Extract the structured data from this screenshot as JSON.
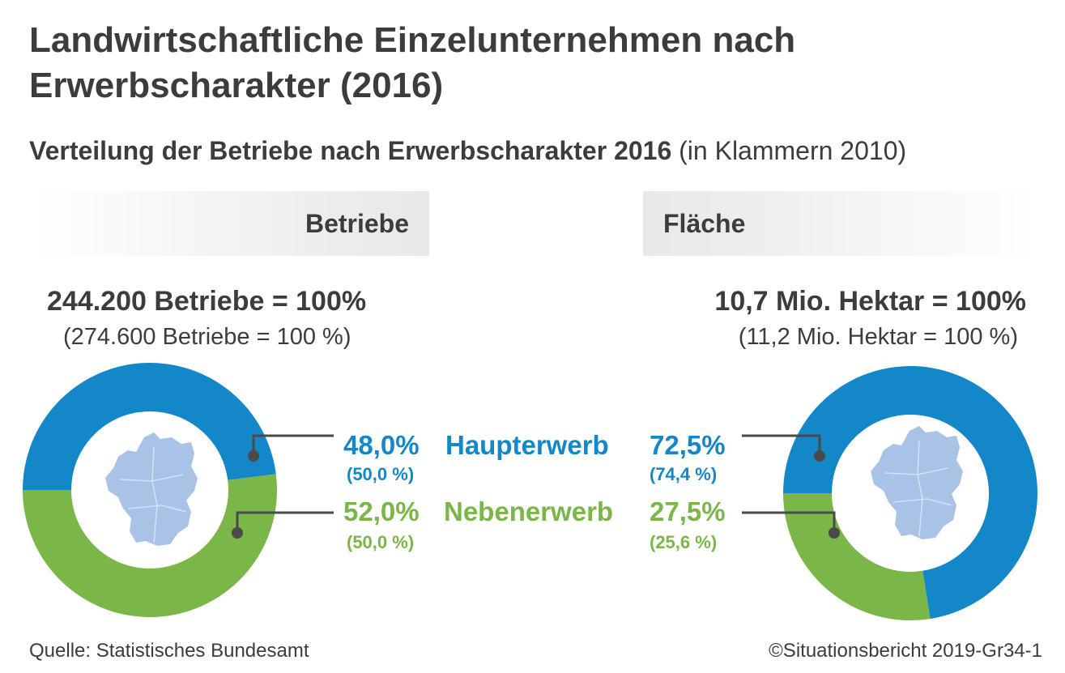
{
  "title": "Landwirtschaftliche Einzelunternehmen nach Erwerbscharakter (2016)",
  "subtitle_bold": "Verteilung der Betriebe nach Erwerbscharakter 2016",
  "subtitle_normal": "(in Klammern 2010)",
  "colors": {
    "haupterwerb": "#1487c8",
    "nebenerwerb": "#7ab648",
    "map": "#a9c3e6"
  },
  "categories": {
    "haupterwerb": "Haupterwerb",
    "nebenerwerb": "Nebenerwerb"
  },
  "betriebe": {
    "header": "Betriebe",
    "total": "244.200 Betriebe = 100%",
    "total_prev": "(274.600 Betriebe = 100 %)",
    "haupterwerb_pct": "48,0%",
    "haupterwerb_prev": "(50,0 %)",
    "nebenerwerb_pct": "52,0%",
    "nebenerwerb_prev": "(50,0 %)"
  },
  "flaeche": {
    "header": "Fläche",
    "total": "10,7 Mio. Hektar = 100%",
    "total_prev": "(11,2 Mio. Hektar = 100 %)",
    "haupterwerb_pct": "72,5%",
    "haupterwerb_prev": "(74,4 %)",
    "nebenerwerb_pct": "27,5%",
    "nebenerwerb_prev": "(25,6 %)"
  },
  "chart_data": [
    {
      "type": "pie",
      "title": "Betriebe",
      "categories": [
        "Haupterwerb",
        "Nebenerwerb"
      ],
      "values": [
        48.0,
        52.0
      ],
      "values_2010": [
        50.0,
        50.0
      ],
      "unit": "%"
    },
    {
      "type": "pie",
      "title": "Fläche",
      "categories": [
        "Haupterwerb",
        "Nebenerwerb"
      ],
      "values": [
        72.5,
        27.5
      ],
      "values_2010": [
        74.4,
        25.6
      ],
      "unit": "%"
    }
  ],
  "source": "Quelle: Statistisches Bundesamt",
  "copyright": "©Situationsbericht 2019-Gr34-1"
}
